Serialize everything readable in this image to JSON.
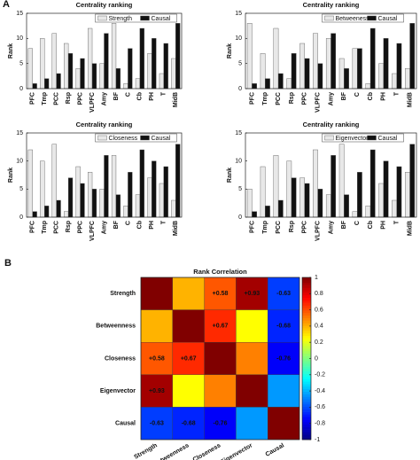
{
  "panel_labels": [
    "A",
    "B"
  ],
  "chart_data": [
    {
      "type": "bar",
      "title": "Centrality ranking",
      "ylabel": "Rank",
      "categories": [
        "PFC",
        "Tmp",
        "PCC",
        "Rsp",
        "PPC",
        "VLPFC",
        "Amy",
        "BF",
        "C",
        "Cb",
        "PH",
        "T",
        "MidB"
      ],
      "series": [
        {
          "name": "Strength",
          "color": "#e8e8e8",
          "values": [
            8,
            10,
            11,
            9,
            4,
            12,
            5,
            13,
            1,
            2,
            7,
            3,
            6
          ]
        },
        {
          "name": "Causal",
          "color": "#111111",
          "values": [
            1,
            2,
            3,
            7,
            6,
            5,
            11,
            4,
            8,
            12,
            10,
            9,
            13
          ]
        }
      ],
      "ylim": [
        0,
        15
      ],
      "yticks": [
        0,
        5,
        10,
        15
      ],
      "legend": "top"
    },
    {
      "type": "bar",
      "title": "Centrality ranking",
      "ylabel": "Rank",
      "categories": [
        "PFC",
        "Tmp",
        "PCC",
        "Rsp",
        "PPC",
        "VLPFC",
        "Amy",
        "BF",
        "C",
        "Cb",
        "PH",
        "T",
        "MidB"
      ],
      "series": [
        {
          "name": "Betweeness",
          "color": "#e8e8e8",
          "values": [
            13,
            7,
            12,
            2,
            9,
            11,
            10,
            6,
            8,
            1,
            5,
            3,
            4
          ]
        },
        {
          "name": "Causal",
          "color": "#111111",
          "values": [
            1,
            2,
            3,
            7,
            6,
            5,
            11,
            4,
            8,
            12,
            10,
            9,
            13
          ]
        }
      ],
      "ylim": [
        0,
        15
      ],
      "yticks": [
        0,
        5,
        10,
        15
      ],
      "legend": "top"
    },
    {
      "type": "bar",
      "title": "Centrality ranking",
      "ylabel": "Rank",
      "categories": [
        "PFC",
        "Tmp",
        "PCC",
        "Rsp",
        "PPC",
        "VLPFC",
        "Amy",
        "BF",
        "C",
        "Cb",
        "PH",
        "T",
        "MidB"
      ],
      "series": [
        {
          "name": "Closeness",
          "color": "#e8e8e8",
          "values": [
            12,
            10,
            13,
            1,
            9,
            8,
            5,
            11,
            2,
            4,
            7,
            6,
            3
          ]
        },
        {
          "name": "Causal",
          "color": "#111111",
          "values": [
            1,
            2,
            3,
            7,
            6,
            5,
            11,
            4,
            8,
            12,
            10,
            9,
            13
          ]
        }
      ],
      "ylim": [
        0,
        15
      ],
      "yticks": [
        0,
        5,
        10,
        15
      ],
      "legend": "top"
    },
    {
      "type": "bar",
      "title": "Centrality ranking",
      "ylabel": "Rank",
      "categories": [
        "PFC",
        "Tmp",
        "PCC",
        "Rsp",
        "PPC",
        "VLPFC",
        "Amy",
        "BF",
        "C",
        "Cb",
        "PH",
        "T",
        "MidB"
      ],
      "series": [
        {
          "name": "Eigenvector",
          "color": "#e8e8e8",
          "values": [
            5,
            9,
            11,
            10,
            7,
            12,
            4,
            13,
            1,
            2,
            6,
            3,
            8
          ]
        },
        {
          "name": "Causal",
          "color": "#111111",
          "values": [
            1,
            2,
            3,
            7,
            6,
            5,
            11,
            4,
            8,
            12,
            10,
            9,
            13
          ]
        }
      ],
      "ylim": [
        0,
        15
      ],
      "yticks": [
        0,
        5,
        10,
        15
      ],
      "legend": "top"
    },
    {
      "type": "heatmap",
      "title": "Rank Correlation",
      "x_categories": [
        "Strength",
        "Betweenness",
        "Closeness",
        "Eigenvector",
        "Causal"
      ],
      "y_categories": [
        "Strength",
        "Betweenness",
        "Closeness",
        "Eigenvector",
        "Causal"
      ],
      "values": [
        [
          1,
          0.4,
          0.58,
          0.93,
          -0.63
        ],
        [
          0.4,
          1,
          0.67,
          0.25,
          -0.68
        ],
        [
          0.58,
          0.67,
          1,
          0.5,
          -0.76
        ],
        [
          0.93,
          0.25,
          0.5,
          1,
          -0.45
        ],
        [
          -0.63,
          -0.68,
          -0.76,
          -0.45,
          1
        ]
      ],
      "value_labels": [
        [
          null,
          null,
          "+0.58",
          "+0.93",
          "-0.63"
        ],
        [
          null,
          null,
          "+0.67",
          null,
          "-0.68"
        ],
        [
          "+0.58",
          "+0.67",
          null,
          null,
          "-0.76"
        ],
        [
          "+0.93",
          null,
          null,
          null,
          null
        ],
        [
          "-0.63",
          "-0.68",
          "-0.76",
          null,
          null
        ]
      ],
      "colormap": "jet",
      "clim": [
        -1,
        1
      ],
      "cticks": [
        -1,
        -0.8,
        -0.6,
        -0.4,
        -0.2,
        0,
        0.2,
        0.4,
        0.6,
        0.8,
        1
      ]
    }
  ]
}
